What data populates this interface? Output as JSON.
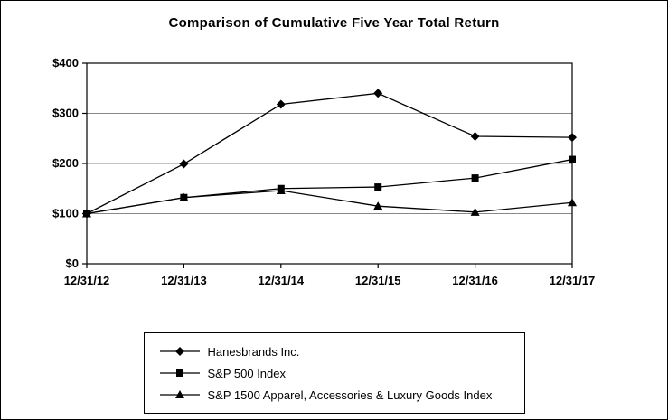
{
  "chart_data": {
    "type": "line",
    "title": "Comparison of Cumulative Five Year Total Return",
    "categories": [
      "12/31/12",
      "12/31/13",
      "12/31/14",
      "12/31/15",
      "12/31/16",
      "12/31/17"
    ],
    "series": [
      {
        "name": "Hanesbrands Inc.",
        "marker": "diamond",
        "values": [
          100,
          199,
          318,
          340,
          254,
          252
        ]
      },
      {
        "name": "S&P 500 Index",
        "marker": "square",
        "values": [
          100,
          132,
          150,
          153,
          171,
          208
        ]
      },
      {
        "name": "S&P 1500 Apparel, Accessories & Luxury Goods Index",
        "marker": "triangle",
        "values": [
          100,
          132,
          146,
          115,
          103,
          122
        ]
      }
    ],
    "ylim": [
      0,
      400
    ],
    "ytick_step": 100,
    "ytick_labels": [
      "$0",
      "$100",
      "$200",
      "$300",
      "$400"
    ],
    "grid": true,
    "legend_position": "bottom",
    "line_color": "#000000",
    "grid_color": "#888888",
    "axis_color": "#000000"
  }
}
